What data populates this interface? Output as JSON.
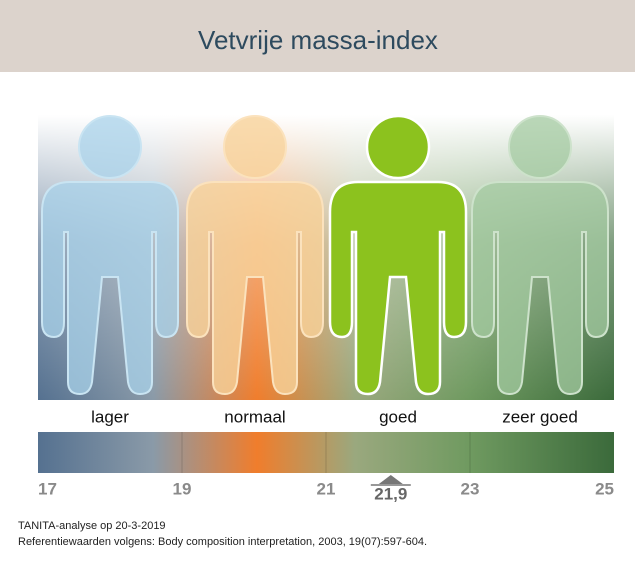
{
  "header": {
    "title": "Vetvrije massa-index"
  },
  "categories": [
    "lager",
    "normaal",
    "goed",
    "zeer goed"
  ],
  "scale": {
    "ticks": [
      17,
      19,
      21,
      23,
      25
    ],
    "marker": {
      "value": 21.9,
      "label": "21,9"
    }
  },
  "footer": [
    "TANITA-analyse op 20-3-2019",
    "Referentiewaarden volgens: Body composition interpretation, 2003, 19(07):597-604."
  ]
}
